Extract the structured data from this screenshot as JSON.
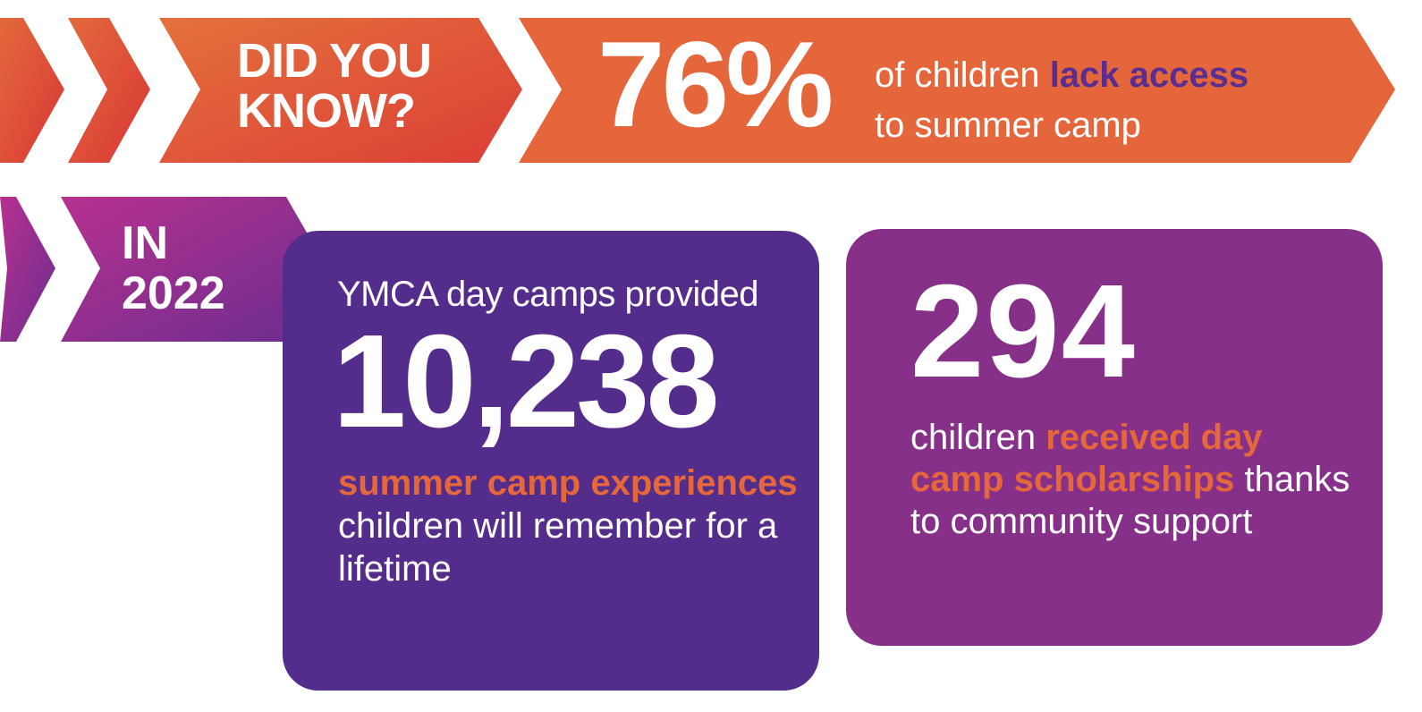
{
  "did_you_know": {
    "line1": "DID YOU",
    "line2": "KNOW?"
  },
  "access_stat": {
    "percent": "76%",
    "text_before": "of children",
    "highlight": "lack access",
    "text_after": "to summer camp"
  },
  "year_banner": {
    "line1": "IN",
    "line2": "2022"
  },
  "camps_card": {
    "intro": "YMCA day camps provided",
    "number": "10,238",
    "highlight": "summer camp experiences",
    "text_after": "children will remember for a lifetime"
  },
  "scholarship_card": {
    "number": "294",
    "text_before": "children",
    "highlight": "received day camp scholarships",
    "text_after": "thanks to community support"
  },
  "colors": {
    "orange": "#e4663a",
    "red": "#d93a3a",
    "dark_purple": "#542d8c",
    "magenta_purple": "#87308a",
    "pink": "#b0308f",
    "text_purple": "#5a2d91",
    "text_orange": "#e5673a"
  }
}
